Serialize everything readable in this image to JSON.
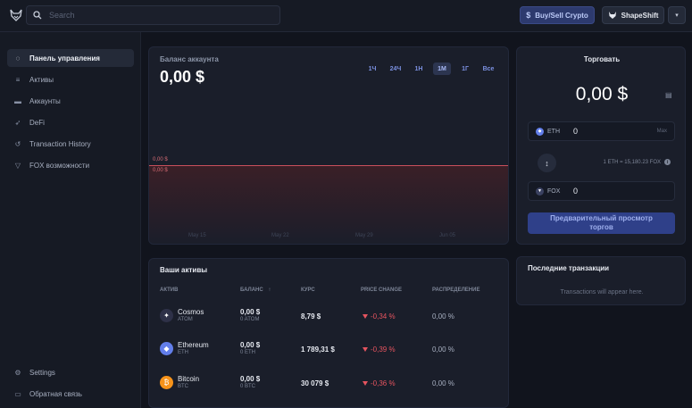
{
  "header": {
    "search_placeholder": "Search",
    "buy_label": "Buy/Sell Crypto",
    "wallet_label": "ShapeShift"
  },
  "sidebar": {
    "items": [
      {
        "label": "Панель управления",
        "icon": "dashboard-icon"
      },
      {
        "label": "Активы",
        "icon": "coins-icon"
      },
      {
        "label": "Аккаунты",
        "icon": "wallet-icon"
      },
      {
        "label": "DeFi",
        "icon": "rocket-icon"
      },
      {
        "label": "Transaction History",
        "icon": "history-icon"
      },
      {
        "label": "FOX возможности",
        "icon": "fox-icon"
      }
    ],
    "bottom": [
      {
        "label": "Settings",
        "icon": "gear-icon"
      },
      {
        "label": "Обратная связь",
        "icon": "chat-icon"
      }
    ]
  },
  "balance": {
    "label": "Баланс аккаунта",
    "value": "0,00 $",
    "ranges": [
      "1Ч",
      "24Ч",
      "1Н",
      "1М",
      "1Г",
      "Все"
    ],
    "selected_range": "1М",
    "axis_label_1": "0,00 $",
    "axis_label_2": "0,00 $",
    "x_labels": [
      "May 15",
      "May 22",
      "May 29",
      "Jun 05"
    ]
  },
  "trade": {
    "title": "Торговать",
    "amount": "0,00 $",
    "from_symbol": "ETH",
    "from_value": "0",
    "max_label": "Max",
    "rate": "1 ETH = 15,180.23 FOX",
    "to_symbol": "FOX",
    "to_value": "0",
    "preview_line1": "Предварительный просмотр",
    "preview_line2": "торгов"
  },
  "assets": {
    "title": "Ваши активы",
    "headers": {
      "asset": "АКТИВ",
      "balance": "БАЛАНС",
      "price": "КУРС",
      "change": "PRICE CHANGE",
      "allocation": "РАСПРЕДЕЛЕНИЕ"
    },
    "rows": [
      {
        "name": "Cosmos",
        "symbol": "ATOM",
        "balance_fiat": "0,00 $",
        "balance_crypto": "0 ATOM",
        "price": "8,79 $",
        "change": "-0,34 %",
        "allocation": "0,00 %",
        "color": "#2e3148"
      },
      {
        "name": "Ethereum",
        "symbol": "ETH",
        "balance_fiat": "0,00 $",
        "balance_crypto": "0 ETH",
        "price": "1 789,31 $",
        "change": "-0,39 %",
        "allocation": "0,00 %",
        "color": "#627eea"
      },
      {
        "name": "Bitcoin",
        "symbol": "BTC",
        "balance_fiat": "0,00 $",
        "balance_crypto": "0 BTC",
        "price": "30 079 $",
        "change": "-0,36 %",
        "allocation": "0,00 %",
        "color": "#f7931a"
      }
    ]
  },
  "transactions": {
    "title": "Последние транзакции",
    "empty_text": "Transactions will appear here."
  }
}
